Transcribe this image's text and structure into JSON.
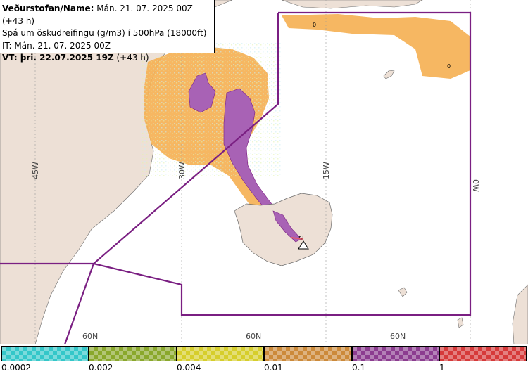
{
  "info": {
    "line1_label": "Veðurstofan/Name:",
    "line1_value": "Mán. 21. 07. 2025 00Z (+43 h)",
    "line2": "Spá um öskudreifingu (g/m3) í 500hPa (18000ft)",
    "line3": "IT: Mán. 21. 07. 2025 00Z",
    "line4_label": "VT: þri. 22.07.2025 19Z",
    "line4_value": "(+43 h)"
  },
  "map": {
    "meridian_labels": [
      "45W",
      "30W",
      "15W",
      "0W"
    ],
    "parallel_labels": [
      "60N",
      "60N",
      "60N"
    ],
    "contour_labels": [
      "0",
      "0"
    ],
    "volcano_label": "5l"
  },
  "legend": {
    "labels": [
      "0.0002",
      "0.002",
      "0.004",
      "0.01",
      "0.1",
      "1"
    ],
    "colors": [
      "#35c7c9",
      "#8aa82c",
      "#d6ce2c",
      "#cc8a3a",
      "#8c3d90",
      "#d63a3a"
    ]
  },
  "colors": {
    "land": "#ede0d6",
    "ash_low": "#f5b155",
    "ash_high": "#a862b5",
    "boundary": "#7a1f82",
    "volcano_core": "#e85a6a"
  }
}
